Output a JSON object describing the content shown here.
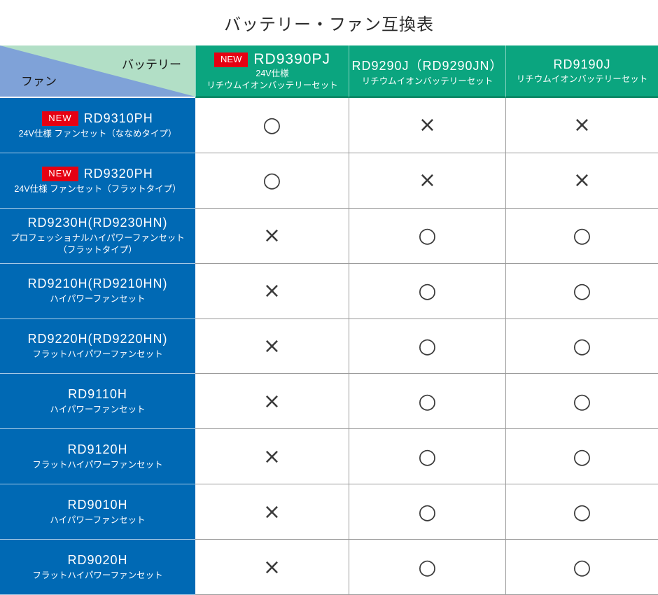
{
  "title": "バッテリー・ファン互換表",
  "badge_new": "NEW",
  "corner": {
    "battery_label": "バッテリー",
    "fan_label": "ファン"
  },
  "colors": {
    "header_green": "#0ba57f",
    "header_green_dark_border": "#0a8a68",
    "corner_light_green": "#b2dfc6",
    "corner_muted_blue": "#7fa2d8",
    "row_blue": "#0069b4",
    "badge_red": "#e60012",
    "grid_line_gray": "#9b9b9b",
    "mark_color": "#3a3a3a"
  },
  "columns": [
    {
      "model": "RD9390PJ",
      "sub1": "24V仕様",
      "sub2": "リチウムイオンバッテリーセット"
    },
    {
      "model": "RD9290J（RD9290JN）",
      "sub2": "リチウムイオンバッテリーセット"
    },
    {
      "model": "RD9190J",
      "sub2": "リチウムイオンバッテリーセット"
    }
  ],
  "rows": [
    {
      "model": "RD9310PH",
      "sub1": "24V仕様 ファンセット（ななめタイプ）",
      "marks": [
        "○",
        "×",
        "×"
      ]
    },
    {
      "model": "RD9320PH",
      "sub1": "24V仕様 ファンセット（フラットタイプ）",
      "marks": [
        "○",
        "×",
        "×"
      ]
    },
    {
      "model": "RD9230H(RD9230HN)",
      "sub1": "プロフェッショナルハイパワーファンセット",
      "sub2": "（フラットタイプ）",
      "marks": [
        "×",
        "○",
        "○"
      ]
    },
    {
      "model": "RD9210H(RD9210HN)",
      "sub1": "ハイパワーファンセット",
      "marks": [
        "×",
        "○",
        "○"
      ]
    },
    {
      "model": "RD9220H(RD9220HN)",
      "sub1": "フラットハイパワーファンセット",
      "marks": [
        "×",
        "○",
        "○"
      ]
    },
    {
      "model": "RD9110H",
      "sub1": "ハイパワーファンセット",
      "marks": [
        "×",
        "○",
        "○"
      ]
    },
    {
      "model": "RD9120H",
      "sub1": "フラットハイパワーファンセット",
      "marks": [
        "×",
        "○",
        "○"
      ]
    },
    {
      "model": "RD9010H",
      "sub1": "ハイパワーファンセット",
      "marks": [
        "×",
        "○",
        "○"
      ]
    },
    {
      "model": "RD9020H",
      "sub1": "フラットハイパワーファンセット",
      "marks": [
        "×",
        "○",
        "○"
      ]
    }
  ]
}
